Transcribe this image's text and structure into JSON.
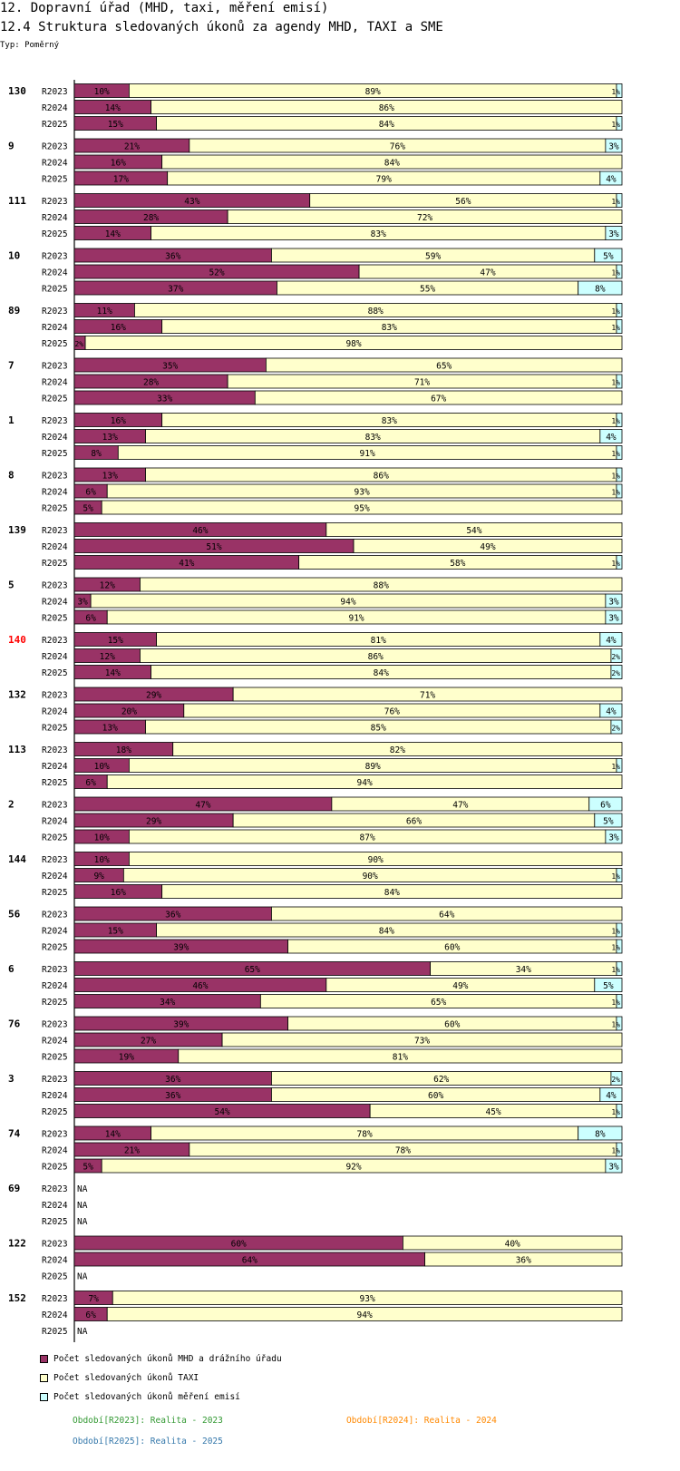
{
  "header": {
    "line1": "12. Dopravní úřad (MHD, taxi, měření emisí)",
    "line2": "12.4 Struktura sledovaných úkonů za agendy MHD, TAXI a SME",
    "line3": "Typ: Poměrný"
  },
  "colors": {
    "mhd": "#993366",
    "taxi": "#ffffcc",
    "sme": "#ccffff",
    "highlight_group": "#ff0000",
    "r2023": "#339933",
    "r2024": "#ff8800",
    "r2025": "#3377aa"
  },
  "legend": {
    "items": [
      {
        "label": "Počet sledovaných úkonů MHD a drážního úřadu",
        "color": "#993366"
      },
      {
        "label": "Počet sledovaných úkonů TAXI",
        "color": "#ffffcc"
      },
      {
        "label": "Počet sledovaných úkonů měření emisí",
        "color": "#ccffff"
      }
    ]
  },
  "periods": {
    "r2023": "Období[R2023]: Realita - 2023",
    "r2024": "Období[R2024]: Realita - 2024",
    "r2025": "Období[R2025]: Realita - 2025"
  },
  "chart_data": {
    "type": "bar",
    "orientation": "horizontal",
    "stacked": "percent",
    "xlim": [
      0,
      100
    ],
    "highlight_group": "140",
    "series_names": [
      "Počet sledovaných úkonů MHD a drážního úřadu",
      "Počet sledovaných úkonů TAXI",
      "Počet sledovaných úkonů měření emisí"
    ],
    "groups": [
      {
        "id": "130",
        "rows": [
          {
            "period": "R2023",
            "values": [
              10,
              89,
              1
            ],
            "labels": [
              "10%",
              "89%",
              "1%"
            ]
          },
          {
            "period": "R2024",
            "values": [
              14,
              86,
              0
            ],
            "labels": [
              "14%",
              "86%",
              ""
            ]
          },
          {
            "period": "R2025",
            "values": [
              15,
              84,
              1
            ],
            "labels": [
              "15%",
              "84%",
              "1%"
            ]
          }
        ]
      },
      {
        "id": "9",
        "rows": [
          {
            "period": "R2023",
            "values": [
              21,
              76,
              3
            ],
            "labels": [
              "21%",
              "76%",
              "3%"
            ]
          },
          {
            "period": "R2024",
            "values": [
              16,
              84,
              0
            ],
            "labels": [
              "16%",
              "84%",
              ""
            ]
          },
          {
            "period": "R2025",
            "values": [
              17,
              79,
              4
            ],
            "labels": [
              "17%",
              "79%",
              "4%"
            ]
          }
        ]
      },
      {
        "id": "111",
        "rows": [
          {
            "period": "R2023",
            "values": [
              43,
              56,
              1
            ],
            "labels": [
              "43%",
              "56%",
              "1%"
            ]
          },
          {
            "period": "R2024",
            "values": [
              28,
              72,
              0
            ],
            "labels": [
              "28%",
              "72%",
              ""
            ]
          },
          {
            "period": "R2025",
            "values": [
              14,
              83,
              3
            ],
            "labels": [
              "14%",
              "83%",
              "3%"
            ]
          }
        ]
      },
      {
        "id": "10",
        "rows": [
          {
            "period": "R2023",
            "values": [
              36,
              59,
              5
            ],
            "labels": [
              "36%",
              "59%",
              "5%"
            ]
          },
          {
            "period": "R2024",
            "values": [
              52,
              47,
              1
            ],
            "labels": [
              "52%",
              "47%",
              "1%"
            ]
          },
          {
            "period": "R2025",
            "values": [
              37,
              55,
              8
            ],
            "labels": [
              "37%",
              "55%",
              "8%"
            ]
          }
        ]
      },
      {
        "id": "89",
        "rows": [
          {
            "period": "R2023",
            "values": [
              11,
              88,
              1
            ],
            "labels": [
              "11%",
              "88%",
              "1%"
            ]
          },
          {
            "period": "R2024",
            "values": [
              16,
              83,
              1
            ],
            "labels": [
              "16%",
              "83%",
              "1%"
            ]
          },
          {
            "period": "R2025",
            "values": [
              2,
              98,
              0
            ],
            "labels": [
              "2%",
              "98%",
              ""
            ]
          }
        ]
      },
      {
        "id": "7",
        "rows": [
          {
            "period": "R2023",
            "values": [
              35,
              65,
              0
            ],
            "labels": [
              "35%",
              "65%",
              ""
            ]
          },
          {
            "period": "R2024",
            "values": [
              28,
              71,
              1
            ],
            "labels": [
              "28%",
              "71%",
              "1%"
            ]
          },
          {
            "period": "R2025",
            "values": [
              33,
              67,
              0
            ],
            "labels": [
              "33%",
              "67%",
              ""
            ]
          }
        ]
      },
      {
        "id": "1",
        "rows": [
          {
            "period": "R2023",
            "values": [
              16,
              83,
              1
            ],
            "labels": [
              "16%",
              "83%",
              "1%"
            ]
          },
          {
            "period": "R2024",
            "values": [
              13,
              83,
              4
            ],
            "labels": [
              "13%",
              "83%",
              "4%"
            ]
          },
          {
            "period": "R2025",
            "values": [
              8,
              91,
              1
            ],
            "labels": [
              "8%",
              "91%",
              "1%"
            ]
          }
        ]
      },
      {
        "id": "8",
        "rows": [
          {
            "period": "R2023",
            "values": [
              13,
              86,
              1
            ],
            "labels": [
              "13%",
              "86%",
              "1%"
            ]
          },
          {
            "period": "R2024",
            "values": [
              6,
              93,
              1
            ],
            "labels": [
              "6%",
              "93%",
              "1%"
            ]
          },
          {
            "period": "R2025",
            "values": [
              5,
              95,
              0
            ],
            "labels": [
              "5%",
              "95%",
              ""
            ]
          }
        ]
      },
      {
        "id": "139",
        "rows": [
          {
            "period": "R2023",
            "values": [
              46,
              54,
              0
            ],
            "labels": [
              "46%",
              "54%",
              ""
            ]
          },
          {
            "period": "R2024",
            "values": [
              51,
              49,
              0
            ],
            "labels": [
              "51%",
              "49%",
              ""
            ]
          },
          {
            "period": "R2025",
            "values": [
              41,
              58,
              1
            ],
            "labels": [
              "41%",
              "58%",
              "1%"
            ]
          }
        ]
      },
      {
        "id": "5",
        "rows": [
          {
            "period": "R2023",
            "values": [
              12,
              88,
              0
            ],
            "labels": [
              "12%",
              "88%",
              ""
            ]
          },
          {
            "period": "R2024",
            "values": [
              3,
              94,
              3
            ],
            "labels": [
              "3%",
              "94%",
              "3%"
            ]
          },
          {
            "period": "R2025",
            "values": [
              6,
              91,
              3
            ],
            "labels": [
              "6%",
              "91%",
              "3%"
            ]
          }
        ]
      },
      {
        "id": "140",
        "rows": [
          {
            "period": "R2023",
            "values": [
              15,
              81,
              4
            ],
            "labels": [
              "15%",
              "81%",
              "4%"
            ]
          },
          {
            "period": "R2024",
            "values": [
              12,
              86,
              2
            ],
            "labels": [
              "12%",
              "86%",
              "2%"
            ]
          },
          {
            "period": "R2025",
            "values": [
              14,
              84,
              2
            ],
            "labels": [
              "14%",
              "84%",
              "2%"
            ]
          }
        ]
      },
      {
        "id": "132",
        "rows": [
          {
            "period": "R2023",
            "values": [
              29,
              71,
              0
            ],
            "labels": [
              "29%",
              "71%",
              ""
            ]
          },
          {
            "period": "R2024",
            "values": [
              20,
              76,
              4
            ],
            "labels": [
              "20%",
              "76%",
              "4%"
            ]
          },
          {
            "period": "R2025",
            "values": [
              13,
              85,
              2
            ],
            "labels": [
              "13%",
              "85%",
              "2%"
            ]
          }
        ]
      },
      {
        "id": "113",
        "rows": [
          {
            "period": "R2023",
            "values": [
              18,
              82,
              0
            ],
            "labels": [
              "18%",
              "82%",
              ""
            ]
          },
          {
            "period": "R2024",
            "values": [
              10,
              89,
              1
            ],
            "labels": [
              "10%",
              "89%",
              "1%"
            ]
          },
          {
            "period": "R2025",
            "values": [
              6,
              94,
              0
            ],
            "labels": [
              "6%",
              "94%",
              ""
            ]
          }
        ]
      },
      {
        "id": "2",
        "rows": [
          {
            "period": "R2023",
            "values": [
              47,
              47,
              6
            ],
            "labels": [
              "47%",
              "47%",
              "6%"
            ]
          },
          {
            "period": "R2024",
            "values": [
              29,
              66,
              5
            ],
            "labels": [
              "29%",
              "66%",
              "5%"
            ]
          },
          {
            "period": "R2025",
            "values": [
              10,
              87,
              3
            ],
            "labels": [
              "10%",
              "87%",
              "3%"
            ]
          }
        ]
      },
      {
        "id": "144",
        "rows": [
          {
            "period": "R2023",
            "values": [
              10,
              90,
              0
            ],
            "labels": [
              "10%",
              "90%",
              ""
            ]
          },
          {
            "period": "R2024",
            "values": [
              9,
              90,
              1
            ],
            "labels": [
              "9%",
              "90%",
              "1%"
            ]
          },
          {
            "period": "R2025",
            "values": [
              16,
              84,
              0
            ],
            "labels": [
              "16%",
              "84%",
              ""
            ]
          }
        ]
      },
      {
        "id": "56",
        "rows": [
          {
            "period": "R2023",
            "values": [
              36,
              64,
              0
            ],
            "labels": [
              "36%",
              "64%",
              ""
            ]
          },
          {
            "period": "R2024",
            "values": [
              15,
              84,
              1
            ],
            "labels": [
              "15%",
              "84%",
              "1%"
            ]
          },
          {
            "period": "R2025",
            "values": [
              39,
              60,
              1
            ],
            "labels": [
              "39%",
              "60%",
              "1%"
            ]
          }
        ]
      },
      {
        "id": "6",
        "rows": [
          {
            "period": "R2023",
            "values": [
              65,
              34,
              1
            ],
            "labels": [
              "65%",
              "34%",
              "1%"
            ]
          },
          {
            "period": "R2024",
            "values": [
              46,
              49,
              5
            ],
            "labels": [
              "46%",
              "49%",
              "5%"
            ]
          },
          {
            "period": "R2025",
            "values": [
              34,
              65,
              1
            ],
            "labels": [
              "34%",
              "65%",
              "1%"
            ]
          }
        ]
      },
      {
        "id": "76",
        "rows": [
          {
            "period": "R2023",
            "values": [
              39,
              60,
              1
            ],
            "labels": [
              "39%",
              "60%",
              "1%"
            ]
          },
          {
            "period": "R2024",
            "values": [
              27,
              73,
              0
            ],
            "labels": [
              "27%",
              "73%",
              ""
            ]
          },
          {
            "period": "R2025",
            "values": [
              19,
              81,
              0
            ],
            "labels": [
              "19%",
              "81%",
              ""
            ]
          }
        ]
      },
      {
        "id": "3",
        "rows": [
          {
            "period": "R2023",
            "values": [
              36,
              62,
              2
            ],
            "labels": [
              "36%",
              "62%",
              "2%"
            ]
          },
          {
            "period": "R2024",
            "values": [
              36,
              60,
              4
            ],
            "labels": [
              "36%",
              "60%",
              "4%"
            ]
          },
          {
            "period": "R2025",
            "values": [
              54,
              45,
              1
            ],
            "labels": [
              "54%",
              "45%",
              "1%"
            ]
          }
        ]
      },
      {
        "id": "74",
        "rows": [
          {
            "period": "R2023",
            "values": [
              14,
              78,
              8
            ],
            "labels": [
              "14%",
              "78%",
              "8%"
            ]
          },
          {
            "period": "R2024",
            "values": [
              21,
              78,
              1
            ],
            "labels": [
              "21%",
              "78%",
              "1%"
            ]
          },
          {
            "period": "R2025",
            "values": [
              5,
              92,
              3
            ],
            "labels": [
              "5%",
              "92%",
              "3%"
            ]
          }
        ]
      },
      {
        "id": "69",
        "rows": [
          {
            "period": "R2023",
            "values": null,
            "labels": [
              "NA"
            ]
          },
          {
            "period": "R2024",
            "values": null,
            "labels": [
              "NA"
            ]
          },
          {
            "period": "R2025",
            "values": null,
            "labels": [
              "NA"
            ]
          }
        ]
      },
      {
        "id": "122",
        "rows": [
          {
            "period": "R2023",
            "values": [
              60,
              40,
              0
            ],
            "labels": [
              "60%",
              "40%",
              ""
            ]
          },
          {
            "period": "R2024",
            "values": [
              64,
              36,
              0
            ],
            "labels": [
              "64%",
              "36%",
              ""
            ]
          },
          {
            "period": "R2025",
            "values": null,
            "labels": [
              "NA"
            ]
          }
        ]
      },
      {
        "id": "152",
        "rows": [
          {
            "period": "R2023",
            "values": [
              7,
              93,
              0
            ],
            "labels": [
              "7%",
              "93%",
              ""
            ]
          },
          {
            "period": "R2024",
            "values": [
              6,
              94,
              0
            ],
            "labels": [
              "6%",
              "94%",
              ""
            ]
          },
          {
            "period": "R2025",
            "values": null,
            "labels": [
              "NA"
            ]
          }
        ]
      }
    ]
  }
}
